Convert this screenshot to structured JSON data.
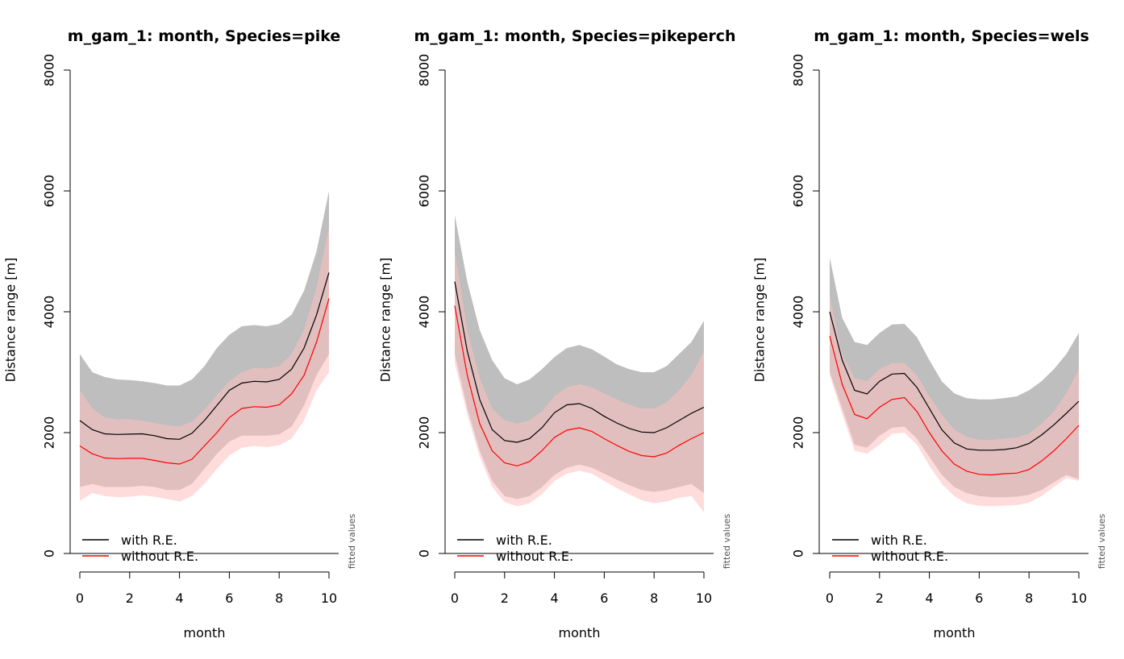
{
  "chart_data": [
    {
      "type": "line",
      "title": "m_gam_1: month, Species=pike",
      "xlabel": "month",
      "ylabel": "Distance range [m]",
      "xlim": [
        0,
        10
      ],
      "ylim": [
        0,
        8000
      ],
      "xticks": [
        "0",
        "2",
        "4",
        "6",
        "8",
        "10"
      ],
      "yticks": [
        "0",
        "2000",
        "4000",
        "6000",
        "8000"
      ],
      "side_label": "fitted values",
      "legend": {
        "position": "bottom-left",
        "entries": [
          "with R.E.",
          "without R.E."
        ]
      },
      "x": [
        0,
        0.5,
        1,
        1.5,
        2,
        2.5,
        3,
        3.5,
        4,
        4.5,
        5,
        5.5,
        6,
        6.5,
        7,
        7.5,
        8,
        8.5,
        9,
        9.5,
        10
      ],
      "series": [
        {
          "name": "with R.E.",
          "color": "#000000",
          "band_color": "#bebebe",
          "values": [
            2200,
            2050,
            1980,
            1970,
            1975,
            1980,
            1950,
            1900,
            1890,
            1990,
            2200,
            2450,
            2700,
            2820,
            2850,
            2840,
            2880,
            3050,
            3400,
            3950,
            4650
          ],
          "lower": [
            1100,
            1150,
            1100,
            1100,
            1100,
            1120,
            1100,
            1050,
            1050,
            1150,
            1400,
            1650,
            1850,
            1950,
            1950,
            1950,
            1970,
            2100,
            2450,
            2950,
            3300
          ],
          "upper": [
            3300,
            3000,
            2920,
            2880,
            2870,
            2850,
            2820,
            2780,
            2780,
            2880,
            3100,
            3400,
            3620,
            3760,
            3780,
            3760,
            3800,
            3950,
            4350,
            5000,
            6000
          ]
        },
        {
          "name": "without R.E.",
          "color": "#ff0000",
          "band_color": "#ffbfbf",
          "values": [
            1780,
            1650,
            1580,
            1570,
            1575,
            1575,
            1540,
            1500,
            1480,
            1560,
            1780,
            2000,
            2250,
            2400,
            2430,
            2420,
            2460,
            2640,
            2950,
            3500,
            4220
          ],
          "lower": [
            870,
            1000,
            950,
            930,
            940,
            960,
            940,
            900,
            860,
            950,
            1150,
            1400,
            1620,
            1750,
            1780,
            1760,
            1790,
            1900,
            2200,
            2700,
            3000
          ],
          "upper": [
            2700,
            2400,
            2250,
            2220,
            2220,
            2200,
            2160,
            2120,
            2100,
            2180,
            2380,
            2620,
            2850,
            3000,
            3070,
            3060,
            3100,
            3300,
            3700,
            4400,
            5400
          ]
        }
      ]
    },
    {
      "type": "line",
      "title": "m_gam_1: month, Species=pikeperch",
      "xlabel": "month",
      "ylabel": "Distance range [m]",
      "xlim": [
        0,
        10
      ],
      "ylim": [
        0,
        8000
      ],
      "xticks": [
        "0",
        "2",
        "4",
        "6",
        "8",
        "10"
      ],
      "yticks": [
        "0",
        "2000",
        "4000",
        "6000",
        "8000"
      ],
      "side_label": "fitted values",
      "legend": {
        "position": "bottom-left",
        "entries": [
          "with R.E.",
          "without R.E."
        ]
      },
      "x": [
        0,
        0.5,
        1,
        1.5,
        2,
        2.5,
        3,
        3.5,
        4,
        4.5,
        5,
        5.5,
        6,
        6.5,
        7,
        7.5,
        8,
        8.5,
        9,
        9.5,
        10
      ],
      "series": [
        {
          "name": "with R.E.",
          "color": "#000000",
          "band_color": "#bebebe",
          "values": [
            4500,
            3350,
            2550,
            2050,
            1870,
            1840,
            1900,
            2080,
            2330,
            2460,
            2480,
            2400,
            2270,
            2160,
            2070,
            2010,
            2000,
            2080,
            2200,
            2320,
            2420
          ],
          "lower": [
            3300,
            2400,
            1700,
            1200,
            950,
            900,
            950,
            1100,
            1300,
            1420,
            1470,
            1420,
            1320,
            1220,
            1130,
            1050,
            1020,
            1050,
            1100,
            1150,
            1000
          ],
          "upper": [
            5600,
            4500,
            3700,
            3200,
            2900,
            2800,
            2880,
            3050,
            3250,
            3400,
            3450,
            3380,
            3260,
            3130,
            3050,
            3000,
            3000,
            3100,
            3300,
            3500,
            3850
          ]
        },
        {
          "name": "without R.E.",
          "color": "#ff0000",
          "band_color": "#ffbfbf",
          "values": [
            4100,
            2950,
            2150,
            1700,
            1500,
            1450,
            1520,
            1700,
            1920,
            2040,
            2080,
            2020,
            1900,
            1790,
            1690,
            1620,
            1600,
            1660,
            1790,
            1900,
            2000
          ],
          "lower": [
            3150,
            2300,
            1600,
            1100,
            850,
            780,
            830,
            980,
            1200,
            1320,
            1370,
            1320,
            1200,
            1080,
            980,
            880,
            830,
            860,
            920,
            950,
            680
          ],
          "upper": [
            5000,
            3700,
            2900,
            2400,
            2200,
            2150,
            2200,
            2350,
            2600,
            2750,
            2800,
            2750,
            2650,
            2550,
            2460,
            2400,
            2400,
            2500,
            2700,
            2950,
            3350
          ]
        }
      ]
    },
    {
      "type": "line",
      "title": "m_gam_1: month, Species=wels",
      "xlabel": "month",
      "ylabel": "Distance range [m]",
      "xlim": [
        0,
        10
      ],
      "ylim": [
        0,
        8000
      ],
      "xticks": [
        "0",
        "2",
        "4",
        "6",
        "8",
        "10"
      ],
      "yticks": [
        "0",
        "2000",
        "4000",
        "6000",
        "8000"
      ],
      "side_label": "fitted values",
      "legend": {
        "position": "bottom-left",
        "entries": [
          "with R.E.",
          "without R.E."
        ]
      },
      "x": [
        0,
        0.5,
        1,
        1.5,
        2,
        2.5,
        3,
        3.5,
        4,
        4.5,
        5,
        5.5,
        6,
        6.5,
        7,
        7.5,
        8,
        8.5,
        9,
        9.5,
        10
      ],
      "series": [
        {
          "name": "with R.E.",
          "color": "#000000",
          "band_color": "#bebebe",
          "values": [
            4000,
            3200,
            2700,
            2640,
            2850,
            2970,
            2980,
            2750,
            2400,
            2050,
            1830,
            1730,
            1710,
            1710,
            1720,
            1750,
            1820,
            1960,
            2130,
            2320,
            2520
          ],
          "lower": [
            3000,
            2400,
            1800,
            1750,
            1950,
            2080,
            2100,
            1900,
            1600,
            1300,
            1100,
            1000,
            950,
            930,
            930,
            940,
            970,
            1050,
            1180,
            1300,
            1230
          ],
          "upper": [
            4900,
            3900,
            3500,
            3450,
            3650,
            3790,
            3800,
            3580,
            3200,
            2850,
            2650,
            2570,
            2550,
            2550,
            2570,
            2600,
            2700,
            2850,
            3050,
            3300,
            3650
          ]
        },
        {
          "name": "without R.E.",
          "color": "#ff0000",
          "band_color": "#ffbfbf",
          "values": [
            3600,
            2800,
            2300,
            2230,
            2420,
            2550,
            2580,
            2350,
            2000,
            1700,
            1480,
            1360,
            1310,
            1300,
            1320,
            1330,
            1390,
            1530,
            1700,
            1900,
            2120
          ],
          "lower": [
            2950,
            2300,
            1700,
            1650,
            1800,
            1980,
            2000,
            1800,
            1450,
            1150,
            950,
            830,
            790,
            780,
            790,
            800,
            840,
            950,
            1100,
            1250,
            1200
          ],
          "upper": [
            4250,
            3300,
            2900,
            2850,
            3050,
            3150,
            3150,
            2950,
            2600,
            2300,
            2050,
            1930,
            1880,
            1880,
            1900,
            1920,
            1980,
            2150,
            2350,
            2650,
            3050
          ]
        }
      ]
    }
  ]
}
